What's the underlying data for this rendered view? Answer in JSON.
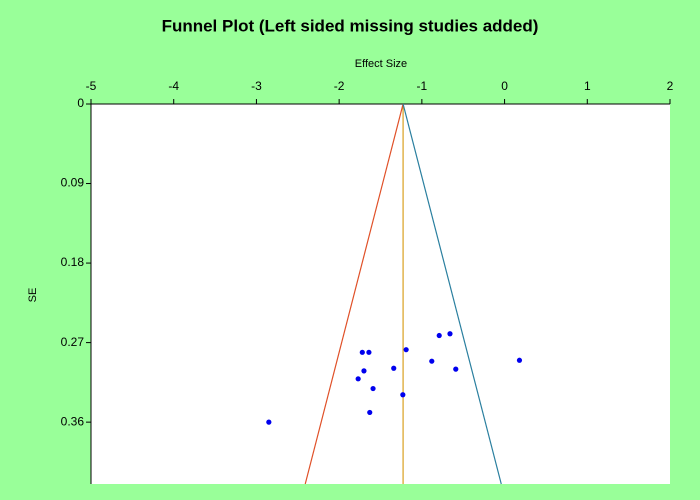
{
  "chart_data": {
    "type": "scatter",
    "title": "Funnel Plot (Left sided missing studies added)",
    "x_label": "Effect Size",
    "y_label": "SE",
    "x": [
      -2.85,
      -1.72,
      -1.64,
      -1.19,
      -0.79,
      -0.66,
      0.18,
      -0.88,
      -0.59,
      -1.34,
      -1.7,
      -1.77,
      -1.59,
      -1.23,
      -1.63
    ],
    "y": [
      0.36,
      0.281,
      0.281,
      0.278,
      0.262,
      0.26,
      0.29,
      0.291,
      0.3,
      0.299,
      0.302,
      0.311,
      0.322,
      0.329,
      0.349
    ],
    "color": "#0000ee",
    "xlim": [
      -5,
      2
    ],
    "ylim": [
      0,
      0.43
    ],
    "xticks": [
      -5,
      -4,
      -3,
      -2,
      -1,
      0,
      1,
      2
    ],
    "yticks": [
      0,
      0.09,
      0.18,
      0.27,
      0.36
    ],
    "y_inverted": true,
    "x_axis_position": "top",
    "mean_effect": -1.227,
    "mean_color": "#d9a020",
    "funnel_left": {
      "x": [
        -1.227,
        -2.41
      ],
      "y": [
        0,
        0.43
      ],
      "color": "#e05028"
    },
    "funnel_right": {
      "x": [
        -1.227,
        -0.04
      ],
      "y": [
        0,
        0.43
      ],
      "color": "#2a7f9f"
    }
  }
}
